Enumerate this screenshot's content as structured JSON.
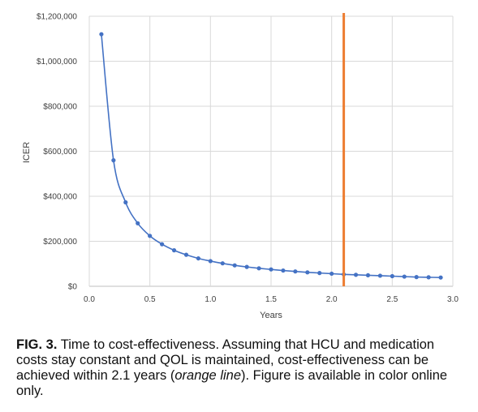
{
  "chart_data": {
    "type": "line",
    "xlabel": "Years",
    "ylabel": "ICER",
    "xlim": [
      0,
      3.0
    ],
    "ylim": [
      0,
      1200000
    ],
    "x_ticks": [
      "0.0",
      "0.5",
      "1.0",
      "1.5",
      "2.0",
      "2.5",
      "3.0"
    ],
    "y_ticks": [
      "$0",
      "$200,000",
      "$400,000",
      "$600,000",
      "$800,000",
      "$1,000,000",
      "$1,200,000"
    ],
    "grid": true,
    "legend": "none",
    "series": [
      {
        "color": "#4472C4",
        "marker": "circle",
        "x": [
          0.1,
          0.2,
          0.3,
          0.4,
          0.5,
          0.6,
          0.7,
          0.8,
          0.9,
          1.0,
          1.1,
          1.2,
          1.3,
          1.4,
          1.5,
          1.6,
          1.7,
          1.8,
          1.9,
          2.0,
          2.1,
          2.2,
          2.3,
          2.4,
          2.5,
          2.6,
          2.7,
          2.8,
          2.9
        ],
        "y": [
          1120000,
          560000,
          373000,
          280000,
          224000,
          187000,
          160000,
          140000,
          124000,
          112000,
          102000,
          93000,
          86000,
          80000,
          75000,
          70000,
          66000,
          62000,
          59000,
          56000,
          53000,
          51000,
          49000,
          47000,
          45000,
          43000,
          41000,
          40000,
          39000
        ]
      }
    ],
    "reference_lines": [
      {
        "x": 2.1,
        "color": "#ED7D31"
      }
    ]
  },
  "caption": {
    "fig_label": "FIG. 3.",
    "text_1": " Time to cost-effectiveness. Assuming that HCU and medication costs stay constant and QOL is maintained, cost-effectiveness can be achieved within 2.1 years (",
    "italic": "orange line",
    "text_2": "). Figure is available in color online only."
  }
}
